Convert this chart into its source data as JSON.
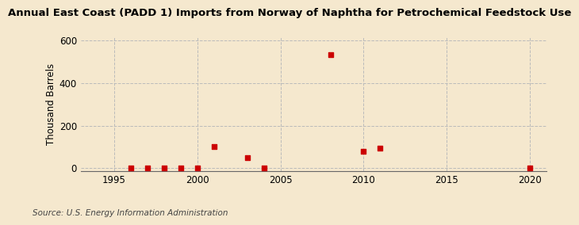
{
  "title": "Annual East Coast (PADD 1) Imports from Norway of Naphtha for Petrochemical Feedstock Use",
  "ylabel": "Thousand Barrels",
  "source": "Source: U.S. Energy Information Administration",
  "xlim": [
    1993,
    2021
  ],
  "ylim": [
    -15,
    620
  ],
  "yticks": [
    0,
    200,
    400,
    600
  ],
  "xticks": [
    1995,
    2000,
    2005,
    2010,
    2015,
    2020
  ],
  "background_color": "#f5e8ce",
  "grid_color": "#bbbbbb",
  "marker_color": "#cc0000",
  "data_points": [
    [
      1996,
      2
    ],
    [
      1997,
      2
    ],
    [
      1998,
      2
    ],
    [
      1999,
      2
    ],
    [
      2000,
      2
    ],
    [
      2001,
      100
    ],
    [
      2003,
      50
    ],
    [
      2004,
      2
    ],
    [
      2008,
      535
    ],
    [
      2010,
      80
    ],
    [
      2011,
      95
    ],
    [
      2020,
      2
    ]
  ],
  "title_fontsize": 9.5,
  "label_fontsize": 8.5,
  "tick_fontsize": 8.5,
  "source_fontsize": 7.5
}
